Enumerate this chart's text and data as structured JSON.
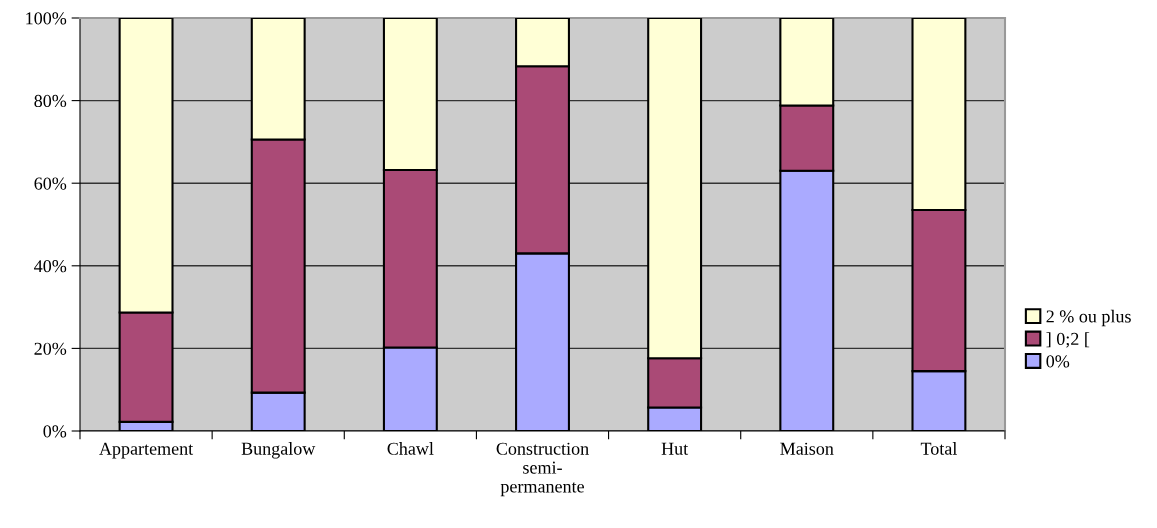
{
  "chart_data": {
    "type": "bar",
    "stacked": true,
    "categories": [
      "Appartement",
      "Bungalow",
      "Chawl",
      "Construction\nsemi-\npermanente",
      "Hut",
      "Maison",
      "Total"
    ],
    "series": [
      {
        "name": "0%",
        "color": "#aaaaff",
        "values": [
          2.2,
          9.3,
          20.2,
          43.0,
          5.7,
          63.0,
          14.5
        ]
      },
      {
        "name": "] 0;2 [",
        "color": "#aa4a76",
        "values": [
          26.5,
          61.3,
          43.0,
          45.3,
          11.9,
          15.8,
          39.0
        ]
      },
      {
        "name": "2 % ou plus",
        "color": "#ffffd6",
        "values": [
          71.3,
          29.4,
          36.8,
          11.7,
          82.4,
          21.2,
          46.5
        ]
      }
    ],
    "ylim": [
      0,
      100
    ],
    "yticks": [
      {
        "value": 0,
        "label": "0%"
      },
      {
        "value": 20,
        "label": "20%"
      },
      {
        "value": 40,
        "label": "40%"
      },
      {
        "value": 60,
        "label": "60%"
      },
      {
        "value": 80,
        "label": "80%"
      },
      {
        "value": 100,
        "label": "100%"
      }
    ],
    "grid": "y",
    "legend": "right"
  }
}
